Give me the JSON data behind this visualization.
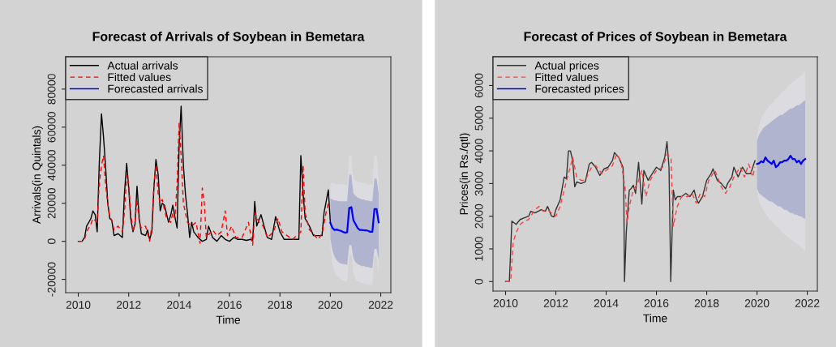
{
  "chart_data": [
    {
      "type": "line",
      "title": "Forecast of Arrivals of Soybean in Bemetara",
      "xlabel": "Time",
      "ylabel": "Arrivals(in Quintals)",
      "xlim": [
        2009.5,
        2022.4
      ],
      "ylim": [
        -27000,
        97000
      ],
      "xticks": [
        2010,
        2012,
        2014,
        2016,
        2018,
        2020,
        2022
      ],
      "yticks": [
        -20000,
        0,
        20000,
        40000,
        60000,
        80000
      ],
      "grid": false,
      "legend": "top left",
      "series": [
        {
          "type": "area",
          "color": "#dcdce0",
          "x": [
            2020.0,
            2020.083,
            2020.167,
            2020.25,
            2020.333,
            2020.417,
            2020.5,
            2020.583,
            2020.667,
            2020.75,
            2020.833,
            2020.917,
            2021.0,
            2021.083,
            2021.167,
            2021.25,
            2021.333,
            2021.417,
            2021.5,
            2021.583,
            2021.667,
            2021.75,
            2021.833,
            2021.917
          ],
          "values": [
            null,
            null,
            null,
            null,
            null,
            null,
            null,
            null,
            null,
            null,
            null,
            null,
            null,
            null,
            null,
            null,
            null,
            null,
            null,
            null,
            null,
            null,
            null,
            null
          ],
          "lower": [
            -3000,
            -12000,
            -16000,
            -18000,
            -19000,
            -20000,
            -20500,
            -21000,
            -21000,
            -7000,
            -7000,
            -17000,
            -20000,
            -21000,
            -21500,
            -22000,
            -22000,
            -22500,
            -22500,
            -23000,
            -23000,
            -8000,
            -8000,
            -18000
          ],
          "upper": [
            30000,
            31000,
            30500,
            30000,
            30000,
            30000,
            30000,
            29500,
            29500,
            45000,
            45000,
            33000,
            32000,
            31500,
            31000,
            31000,
            30500,
            30500,
            30000,
            30000,
            30000,
            45000,
            45000,
            33000
          ]
        },
        {
          "type": "area",
          "color": "#b1b4cf",
          "x": [
            2020.0,
            2020.083,
            2020.167,
            2020.25,
            2020.333,
            2020.417,
            2020.5,
            2020.583,
            2020.667,
            2020.75,
            2020.833,
            2020.917,
            2021.0,
            2021.083,
            2021.167,
            2021.25,
            2021.333,
            2021.417,
            2021.5,
            2021.583,
            2021.667,
            2021.75,
            2021.833,
            2021.917
          ],
          "values": [
            null,
            null,
            null,
            null,
            null,
            null,
            null,
            null,
            null,
            null,
            null,
            null,
            null,
            null,
            null,
            null,
            null,
            null,
            null,
            null,
            null,
            null,
            null,
            null
          ],
          "lower": [
            1500,
            -5000,
            -8000,
            -10000,
            -11000,
            -11500,
            -12000,
            -12000,
            -12500,
            -2000,
            -2000,
            -9000,
            -11000,
            -12000,
            -12500,
            -13000,
            -13000,
            -13500,
            -13500,
            -14000,
            -14000,
            -4000,
            -4000,
            -10000
          ],
          "upper": [
            22500,
            22000,
            21500,
            21500,
            21000,
            21000,
            21000,
            21000,
            21000,
            35000,
            35000,
            25000,
            24000,
            23000,
            22500,
            22000,
            22000,
            21500,
            21500,
            21000,
            21000,
            33000,
            33000,
            25000
          ]
        },
        {
          "name": "Actual arrivals",
          "color": "#000000",
          "line_style": "solid",
          "x": [
            2010.0,
            2010.15,
            2010.25,
            2010.33,
            2010.42,
            2010.5,
            2010.58,
            2010.67,
            2010.75,
            2010.83,
            2010.92,
            2011.0,
            2011.08,
            2011.17,
            2011.25,
            2011.33,
            2011.42,
            2011.58,
            2011.75,
            2011.83,
            2011.92,
            2012.0,
            2012.08,
            2012.17,
            2012.25,
            2012.33,
            2012.42,
            2012.5,
            2012.67,
            2012.75,
            2012.83,
            2012.92,
            2013.0,
            2013.08,
            2013.17,
            2013.25,
            2013.33,
            2013.42,
            2013.58,
            2013.67,
            2013.75,
            2013.83,
            2013.92,
            2014.0,
            2014.08,
            2014.17,
            2014.25,
            2014.33,
            2014.42,
            2014.5,
            2014.58,
            2014.75,
            2014.92,
            2015.08,
            2015.17,
            2015.33,
            2015.5,
            2015.67,
            2015.83,
            2016.0,
            2016.17,
            2016.33,
            2016.5,
            2016.67,
            2016.83,
            2016.92,
            2017.0,
            2017.08,
            2017.25,
            2017.33,
            2017.5,
            2017.67,
            2017.83,
            2018.0,
            2018.17,
            2018.5,
            2018.75,
            2018.83,
            2018.92,
            2019.0,
            2019.17,
            2019.33,
            2019.5,
            2019.67,
            2019.75,
            2019.92,
            2020.0
          ],
          "values": [
            0,
            0,
            2000,
            8000,
            10000,
            12000,
            16000,
            14000,
            5000,
            40000,
            67000,
            55000,
            40000,
            20000,
            12000,
            11000,
            3000,
            4000,
            2000,
            25000,
            41000,
            28000,
            12000,
            5000,
            9000,
            29000,
            12000,
            4000,
            3000,
            6000,
            1000,
            5000,
            28000,
            43000,
            35000,
            16000,
            20000,
            19000,
            10000,
            14000,
            19000,
            13000,
            7000,
            50000,
            71000,
            40000,
            25000,
            15000,
            2000,
            10000,
            5000,
            2000,
            0,
            1000,
            8000,
            2000,
            0,
            3000,
            1000,
            0,
            2000,
            1000,
            1000,
            500,
            1000,
            500,
            21000,
            8000,
            14000,
            10000,
            2000,
            1000,
            13000,
            5000,
            1000,
            1000,
            1000,
            45000,
            25000,
            12000,
            8000,
            3000,
            3000,
            3000,
            15000,
            27000,
            10000
          ]
        },
        {
          "name": "Fitted values",
          "color": "#ff0000",
          "line_style": "dashed",
          "x": [
            2010.0,
            2010.17,
            2010.25,
            2010.33,
            2010.5,
            2010.58,
            2010.67,
            2010.75,
            2010.83,
            2010.92,
            2011.0,
            2011.08,
            2011.17,
            2011.25,
            2011.33,
            2011.42,
            2011.58,
            2011.75,
            2011.83,
            2011.92,
            2012.0,
            2012.08,
            2012.17,
            2012.25,
            2012.33,
            2012.42,
            2012.5,
            2012.67,
            2012.83,
            2012.92,
            2013.0,
            2013.08,
            2013.17,
            2013.25,
            2013.33,
            2013.5,
            2013.67,
            2013.75,
            2013.83,
            2013.92,
            2014.0,
            2014.08,
            2014.17,
            2014.33,
            2014.5,
            2014.67,
            2014.83,
            2014.92,
            2015.0,
            2015.08,
            2015.33,
            2015.5,
            2015.67,
            2015.83,
            2015.92,
            2016.08,
            2016.25,
            2016.5,
            2016.75,
            2016.92,
            2017.0,
            2017.17,
            2017.33,
            2017.5,
            2017.75,
            2017.92,
            2018.08,
            2018.5,
            2018.83,
            2018.92,
            2019.0,
            2019.17,
            2019.33,
            2019.5,
            2019.67,
            2019.83,
            2019.92
          ],
          "values": [
            0,
            0,
            1000,
            5000,
            9000,
            12000,
            11000,
            10000,
            30000,
            40000,
            45000,
            30000,
            20000,
            13000,
            11000,
            6000,
            8000,
            5000,
            15000,
            35000,
            30000,
            15000,
            5000,
            10000,
            22000,
            10000,
            7000,
            8000,
            0,
            8000,
            30000,
            40000,
            25000,
            20000,
            22000,
            12000,
            10000,
            15000,
            12000,
            30000,
            62000,
            45000,
            20000,
            10000,
            8000,
            10000,
            -1000,
            28000,
            20000,
            2000,
            6000,
            3000,
            5000,
            16000,
            3000,
            8000,
            2000,
            2000,
            10000,
            -2000,
            15000,
            10000,
            8000,
            2000,
            5000,
            12000,
            5000,
            1000,
            5000,
            40000,
            15000,
            6000,
            4000,
            1000,
            4000,
            15000,
            20000
          ]
        },
        {
          "name": "Forecasted arrivals",
          "color": "#0000ff",
          "line_style": "solid",
          "x": [
            2020.0,
            2020.083,
            2020.167,
            2020.25,
            2020.333,
            2020.417,
            2020.5,
            2020.583,
            2020.667,
            2020.75,
            2020.833,
            2020.917,
            2021.0,
            2021.083,
            2021.167,
            2021.25,
            2021.333,
            2021.417,
            2021.5,
            2021.583,
            2021.667,
            2021.75,
            2021.833,
            2021.917
          ],
          "values": [
            9700,
            7000,
            6000,
            6200,
            5800,
            5500,
            5000,
            4500,
            4800,
            17500,
            18000,
            11000,
            9000,
            7000,
            6000,
            6000,
            5800,
            5800,
            5500,
            5000,
            5000,
            17000,
            17000,
            10000
          ]
        }
      ]
    },
    {
      "type": "line",
      "title": "Forecast of Prices of Soybean in Bemetara",
      "xlabel": "Time",
      "ylabel": "Prices(in Rs./qtl)",
      "xlim": [
        2009.5,
        2022.4
      ],
      "ylim": [
        -290,
        6880
      ],
      "xticks": [
        2010,
        2012,
        2014,
        2016,
        2018,
        2020,
        2022
      ],
      "yticks": [
        0,
        1000,
        2000,
        3000,
        4000,
        5000,
        6000
      ],
      "grid": false,
      "legend": "top left",
      "series": [
        {
          "type": "area",
          "color": "#dcdce0",
          "x": [
            2020.0,
            2020.083,
            2020.167,
            2020.25,
            2020.333,
            2020.417,
            2020.5,
            2020.583,
            2020.667,
            2020.75,
            2020.833,
            2020.917,
            2021.0,
            2021.083,
            2021.167,
            2021.25,
            2021.333,
            2021.417,
            2021.5,
            2021.583,
            2021.667,
            2021.75,
            2021.833,
            2021.917
          ],
          "values": [
            null,
            null,
            null,
            null,
            null,
            null,
            null,
            null,
            null,
            null,
            null,
            null,
            null,
            null,
            null,
            null,
            null,
            null,
            null,
            null,
            null,
            null,
            null,
            null
          ],
          "lower": [
            2800,
            2450,
            2300,
            2200,
            2100,
            2000,
            1900,
            1850,
            1800,
            1700,
            1650,
            1600,
            1500,
            1450,
            1400,
            1350,
            1300,
            1250,
            1200,
            1150,
            1100,
            1050,
            1000,
            930
          ],
          "upper": [
            4400,
            4800,
            5000,
            5100,
            5200,
            5300,
            5400,
            5450,
            5500,
            5600,
            5650,
            5700,
            5800,
            5850,
            5900,
            6000,
            6050,
            6100,
            6150,
            6200,
            6250,
            6300,
            6350,
            6470
          ]
        },
        {
          "type": "area",
          "color": "#b1b4cf",
          "x": [
            2020.0,
            2020.083,
            2020.167,
            2020.25,
            2020.333,
            2020.417,
            2020.5,
            2020.583,
            2020.667,
            2020.75,
            2020.833,
            2020.917,
            2021.0,
            2021.083,
            2021.167,
            2021.25,
            2021.333,
            2021.417,
            2021.5,
            2021.583,
            2021.667,
            2021.75,
            2021.833,
            2021.917
          ],
          "values": [
            null,
            null,
            null,
            null,
            null,
            null,
            null,
            null,
            null,
            null,
            null,
            null,
            null,
            null,
            null,
            null,
            null,
            null,
            null,
            null,
            null,
            null,
            null,
            null
          ],
          "lower": [
            2850,
            2700,
            2650,
            2600,
            2550,
            2500,
            2450,
            2450,
            2400,
            2350,
            2300,
            2300,
            2250,
            2200,
            2200,
            2150,
            2100,
            2100,
            2050,
            2050,
            2000,
            2000,
            1950,
            1920
          ],
          "upper": [
            4320,
            4500,
            4600,
            4700,
            4750,
            4800,
            4850,
            4900,
            4950,
            5000,
            5050,
            5100,
            5100,
            5150,
            5200,
            5250,
            5300,
            5300,
            5350,
            5400,
            5400,
            5450,
            5500,
            5560
          ]
        },
        {
          "name": "Actual prices",
          "color": "#333333",
          "line_style": "solid",
          "x": [
            2010.0,
            2010.15,
            2010.2,
            2010.25,
            2010.42,
            2010.58,
            2010.75,
            2010.92,
            2011.0,
            2011.17,
            2011.42,
            2011.58,
            2011.67,
            2011.83,
            2011.92,
            2012.0,
            2012.17,
            2012.33,
            2012.42,
            2012.5,
            2012.58,
            2012.67,
            2012.75,
            2012.83,
            2013.0,
            2013.17,
            2013.33,
            2013.42,
            2013.58,
            2013.75,
            2013.92,
            2014.08,
            2014.25,
            2014.33,
            2014.5,
            2014.67,
            2014.7,
            2014.73,
            2014.8,
            2014.92,
            2015.0,
            2015.08,
            2015.17,
            2015.29,
            2015.42,
            2015.5,
            2015.67,
            2015.83,
            2016.0,
            2016.17,
            2016.33,
            2016.42,
            2016.5,
            2016.54,
            2016.57,
            2016.67,
            2016.75,
            2016.83,
            2017.0,
            2017.17,
            2017.33,
            2017.5,
            2017.58,
            2017.67,
            2017.83,
            2018.0,
            2018.17,
            2018.25,
            2018.42,
            2018.58,
            2018.75,
            2018.83,
            2019.0,
            2019.08,
            2019.25,
            2019.42,
            2019.58,
            2019.75,
            2019.83,
            2019.92
          ],
          "values": [
            0,
            0,
            900,
            1850,
            1750,
            1900,
            1950,
            2000,
            2150,
            2100,
            2200,
            2150,
            2300,
            2000,
            1980,
            2200,
            2500,
            3200,
            3150,
            4000,
            4000,
            3700,
            2900,
            3050,
            3000,
            3050,
            3600,
            3650,
            3500,
            3250,
            3450,
            3500,
            3700,
            3950,
            3800,
            3500,
            3000,
            0,
            1500,
            2800,
            2850,
            2950,
            2700,
            3650,
            2370,
            3400,
            3100,
            3300,
            3500,
            3400,
            3800,
            4280,
            3500,
            1500,
            0,
            2800,
            2500,
            2600,
            2600,
            2700,
            2600,
            2800,
            2550,
            2400,
            2600,
            3100,
            3300,
            3450,
            3100,
            3000,
            2840,
            3000,
            3200,
            3500,
            3200,
            3500,
            3300,
            3300,
            3500,
            3700
          ]
        },
        {
          "name": "Fitted values",
          "color": "#ff4040",
          "line_style": "dashed",
          "x": [
            2010.0,
            2010.2,
            2010.3,
            2010.42,
            2010.58,
            2010.75,
            2010.92,
            2011.17,
            2011.33,
            2011.5,
            2011.67,
            2011.83,
            2012.0,
            2012.17,
            2012.33,
            2012.5,
            2012.67,
            2012.83,
            2013.0,
            2013.17,
            2013.42,
            2013.58,
            2013.83,
            2014.0,
            2014.25,
            2014.42,
            2014.58,
            2014.75,
            2014.83,
            2014.92,
            2015.08,
            2015.25,
            2015.42,
            2015.58,
            2015.75,
            2016.0,
            2016.25,
            2016.42,
            2016.58,
            2016.67,
            2016.83,
            2017.0,
            2017.25,
            2017.42,
            2017.58,
            2017.75,
            2017.92,
            2018.08,
            2018.33,
            2018.58,
            2018.75,
            2018.92,
            2019.08,
            2019.33,
            2019.5,
            2019.67,
            2019.83,
            2019.92
          ],
          "values": [
            0,
            0,
            1200,
            1500,
            1750,
            1850,
            1900,
            2200,
            2300,
            2150,
            2200,
            2100,
            2000,
            2300,
            2800,
            3300,
            3800,
            3200,
            3100,
            3100,
            3500,
            3550,
            3300,
            3400,
            3550,
            3900,
            3700,
            2900,
            1800,
            2300,
            2800,
            3000,
            3400,
            2600,
            3100,
            3400,
            3500,
            3900,
            3800,
            1700,
            2300,
            2600,
            2600,
            2700,
            2400,
            2700,
            2600,
            3100,
            3400,
            2900,
            2700,
            2900,
            3200,
            3500,
            3200,
            3600,
            3200,
            3500
          ]
        },
        {
          "name": "Forecasted prices",
          "color": "#0000ee",
          "line_style": "solid",
          "x": [
            2020.0,
            2020.083,
            2020.167,
            2020.25,
            2020.333,
            2020.417,
            2020.5,
            2020.583,
            2020.667,
            2020.75,
            2020.833,
            2020.917,
            2021.0,
            2021.083,
            2021.167,
            2021.25,
            2021.333,
            2021.417,
            2021.5,
            2021.583,
            2021.667,
            2021.75,
            2021.833,
            2021.917
          ],
          "values": [
            3600,
            3620,
            3680,
            3650,
            3800,
            3700,
            3650,
            3600,
            3700,
            3500,
            3550,
            3650,
            3650,
            3700,
            3700,
            3750,
            3850,
            3750,
            3750,
            3650,
            3700,
            3600,
            3700,
            3750
          ]
        }
      ]
    }
  ]
}
